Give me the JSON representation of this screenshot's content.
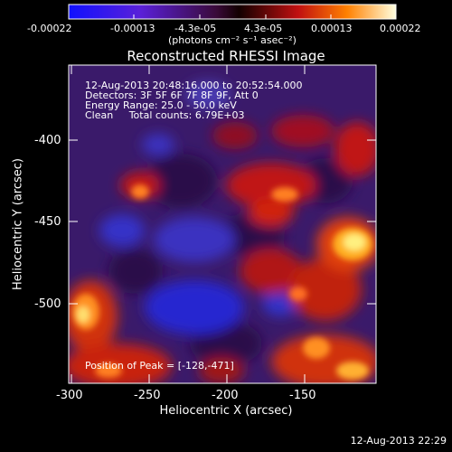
{
  "colorbar": {
    "ticks": [
      "-0.00022",
      "-0.00013",
      "-4.3e-05",
      "4.3e-05",
      "0.00013",
      "0.00022"
    ],
    "unit_label": "(photons cm⁻² s⁻¹ asec⁻²)"
  },
  "plot": {
    "title": "Reconstructed RHESSI Image",
    "info": {
      "time_range": "12-Aug-2013 20:48:16.000 to 20:52:54.000",
      "detectors": "Detectors: 3F 5F 6F 7F 8F 9F, Att 0",
      "energy": "Energy Range: 25.0 - 50.0 keV",
      "clean": "Clean     Total counts: 6.79E+03"
    },
    "peak_label": "Position of Peak = [-128,-471]",
    "x_axis": {
      "label": "Heliocentric X (arcsec)",
      "ticks": [
        "-300",
        "-250",
        "-200",
        "-150"
      ]
    },
    "y_axis": {
      "label": "Heliocentric Y (arcsec)",
      "ticks": [
        "-400",
        "-450",
        "-500"
      ]
    }
  },
  "footer": {
    "timestamp": "12-Aug-2013 22:29"
  }
}
